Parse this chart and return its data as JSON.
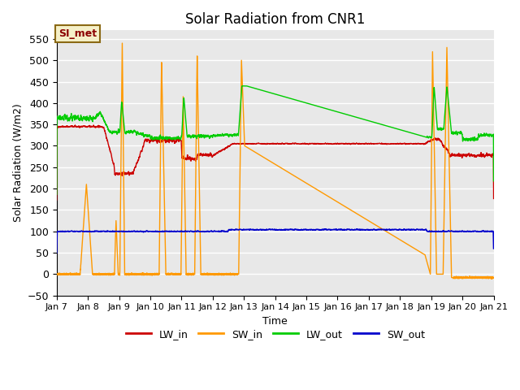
{
  "title": "Solar Radiation from CNR1",
  "xlabel": "Time",
  "ylabel": "Solar Radiation (W/m2)",
  "ylim": [
    -50,
    570
  ],
  "yticks": [
    -50,
    0,
    50,
    100,
    150,
    200,
    250,
    300,
    350,
    400,
    450,
    500,
    550
  ],
  "xlim_start": 7,
  "xlim_end": 21,
  "xtick_labels": [
    "Jan 7",
    "Jan 8",
    "Jan 9",
    "Jan 10",
    "Jan 11",
    "Jan 12",
    "Jan 13",
    "Jan 14",
    "Jan 15",
    "Jan 16",
    "Jan 17",
    "Jan 18",
    "Jan 19",
    "Jan 20",
    "Jan 21"
  ],
  "bg_color": "#e8e8e8",
  "grid_color": "white",
  "annotation_label": "SI_met",
  "annotation_text_color": "#8b0000",
  "annotation_bg": "#f5f0c8",
  "annotation_border": "#8b6914",
  "colors": {
    "LW_in": "#cc0000",
    "SW_in": "#ff9900",
    "LW_out": "#00cc00",
    "SW_out": "#0000cc"
  },
  "legend_labels": [
    "LW_in",
    "SW_in",
    "LW_out",
    "SW_out"
  ],
  "figsize": [
    6.4,
    4.8
  ],
  "dpi": 100
}
